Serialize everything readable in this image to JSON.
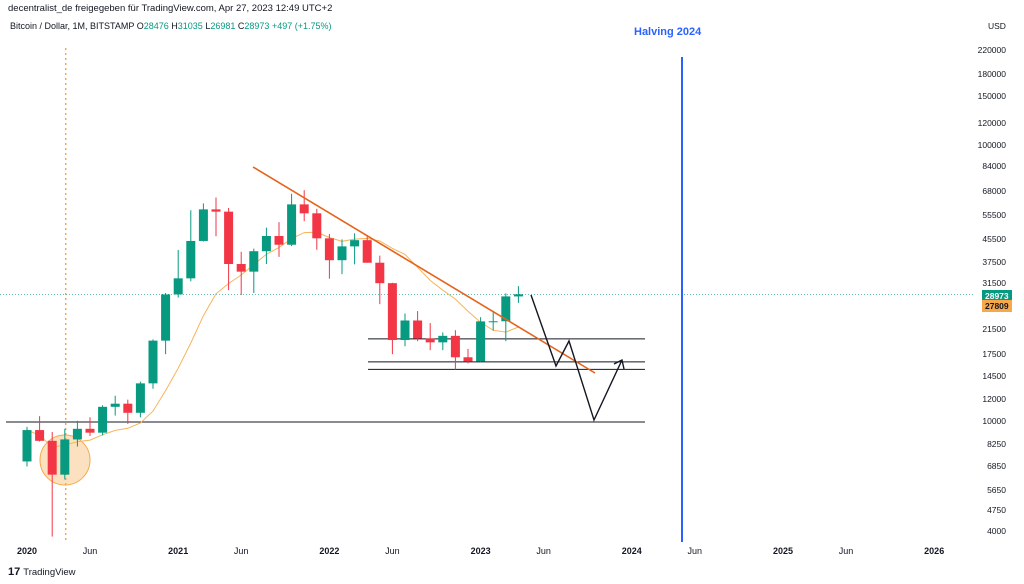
{
  "header": {
    "publish_line": "decentralist_de freigegeben für TradingView.com, Apr 27, 2023 12:49 UTC+2"
  },
  "legend": {
    "symbol": "Bitcoin / Dollar, 1M, BITSTAMP",
    "open_label": "O",
    "open": "28476",
    "high_label": "H",
    "high": "31035",
    "low_label": "L",
    "low": "26981",
    "close_label": "C",
    "close": "28973",
    "change": "+497 (+1.75%)"
  },
  "annotation": {
    "halving": "Halving 2024"
  },
  "price_axis": {
    "currency": "USD",
    "ticks": [
      "220000",
      "180000",
      "150000",
      "120000",
      "100000",
      "84000",
      "68000",
      "55500",
      "45500",
      "37500",
      "31500",
      "21500",
      "17500",
      "14500",
      "12000",
      "10000",
      "8250",
      "6850",
      "5650",
      "4750",
      "4000"
    ],
    "last_price_tag": "28973",
    "ma_tag": "27809"
  },
  "time_axis": {
    "labels": [
      {
        "text": "2020",
        "year": true
      },
      {
        "text": "Jun",
        "year": false
      },
      {
        "text": "2021",
        "year": true
      },
      {
        "text": "Jun",
        "year": false
      },
      {
        "text": "2022",
        "year": true
      },
      {
        "text": "Jun",
        "year": false
      },
      {
        "text": "2023",
        "year": true
      },
      {
        "text": "Jun",
        "year": false
      },
      {
        "text": "2024",
        "year": true
      },
      {
        "text": "Jun",
        "year": false
      },
      {
        "text": "2025",
        "year": true
      },
      {
        "text": "Jun",
        "year": false
      },
      {
        "text": "2026",
        "year": true
      }
    ]
  },
  "footer": {
    "brand": "TradingView"
  },
  "colors": {
    "up": "#089981",
    "down": "#f23645",
    "ma": "#f7b45a",
    "trendline": "#e5631c",
    "halving_line": "#2962ff",
    "highlight_circle": "#f7a84a"
  },
  "chart_data": {
    "type": "candlestick",
    "title": "Bitcoin / Dollar, 1M, BITSTAMP",
    "y_scale": "log",
    "ylim": [
      3800,
      240000
    ],
    "y_unit": "USD",
    "candles": [
      {
        "date": "2020-01",
        "o": 7200,
        "h": 9600,
        "l": 6900,
        "c": 9350
      },
      {
        "date": "2020-02",
        "o": 9350,
        "h": 10500,
        "l": 8500,
        "c": 8550
      },
      {
        "date": "2020-03",
        "o": 8550,
        "h": 9200,
        "l": 3850,
        "c": 6450
      },
      {
        "date": "2020-04",
        "o": 6450,
        "h": 9450,
        "l": 6200,
        "c": 8650
      },
      {
        "date": "2020-05",
        "o": 8650,
        "h": 10100,
        "l": 8150,
        "c": 9450
      },
      {
        "date": "2020-06",
        "o": 9450,
        "h": 10400,
        "l": 8900,
        "c": 9150
      },
      {
        "date": "2020-07",
        "o": 9150,
        "h": 11500,
        "l": 8950,
        "c": 11350
      },
      {
        "date": "2020-08",
        "o": 11350,
        "h": 12450,
        "l": 10550,
        "c": 11650
      },
      {
        "date": "2020-09",
        "o": 11650,
        "h": 12050,
        "l": 9850,
        "c": 10800
      },
      {
        "date": "2020-10",
        "o": 10800,
        "h": 14000,
        "l": 10400,
        "c": 13800
      },
      {
        "date": "2020-11",
        "o": 13800,
        "h": 19900,
        "l": 13200,
        "c": 19700
      },
      {
        "date": "2020-12",
        "o": 19700,
        "h": 29300,
        "l": 17600,
        "c": 28950
      },
      {
        "date": "2021-01",
        "o": 28950,
        "h": 41950,
        "l": 28200,
        "c": 33100
      },
      {
        "date": "2021-02",
        "o": 33100,
        "h": 58350,
        "l": 32300,
        "c": 45200
      },
      {
        "date": "2021-03",
        "o": 45200,
        "h": 61800,
        "l": 45000,
        "c": 58800
      },
      {
        "date": "2021-04",
        "o": 58800,
        "h": 64900,
        "l": 47000,
        "c": 57700
      },
      {
        "date": "2021-05",
        "o": 57700,
        "h": 59500,
        "l": 30000,
        "c": 37300
      },
      {
        "date": "2021-06",
        "o": 37300,
        "h": 41300,
        "l": 28800,
        "c": 35000
      },
      {
        "date": "2021-07",
        "o": 35000,
        "h": 42400,
        "l": 29300,
        "c": 41500
      },
      {
        "date": "2021-08",
        "o": 41500,
        "h": 50500,
        "l": 37300,
        "c": 47100
      },
      {
        "date": "2021-09",
        "o": 47100,
        "h": 52900,
        "l": 39600,
        "c": 43800
      },
      {
        "date": "2021-10",
        "o": 43800,
        "h": 67000,
        "l": 43300,
        "c": 61300
      },
      {
        "date": "2021-11",
        "o": 61300,
        "h": 69000,
        "l": 53300,
        "c": 56900
      },
      {
        "date": "2021-12",
        "o": 56900,
        "h": 59100,
        "l": 42000,
        "c": 46200
      },
      {
        "date": "2022-01",
        "o": 46200,
        "h": 47900,
        "l": 33000,
        "c": 38500
      },
      {
        "date": "2022-02",
        "o": 38500,
        "h": 45800,
        "l": 34300,
        "c": 43200
      },
      {
        "date": "2022-03",
        "o": 43200,
        "h": 48200,
        "l": 37200,
        "c": 45500
      },
      {
        "date": "2022-04",
        "o": 45500,
        "h": 47400,
        "l": 37700,
        "c": 37700
      },
      {
        "date": "2022-05",
        "o": 37700,
        "h": 40000,
        "l": 26700,
        "c": 31800
      },
      {
        "date": "2022-06",
        "o": 31800,
        "h": 31900,
        "l": 17600,
        "c": 19800
      },
      {
        "date": "2022-07",
        "o": 19800,
        "h": 24700,
        "l": 18800,
        "c": 23300
      },
      {
        "date": "2022-08",
        "o": 23300,
        "h": 25200,
        "l": 19600,
        "c": 20050
      },
      {
        "date": "2022-09",
        "o": 20050,
        "h": 22800,
        "l": 18200,
        "c": 19420
      },
      {
        "date": "2022-10",
        "o": 19420,
        "h": 21100,
        "l": 18200,
        "c": 20500
      },
      {
        "date": "2022-11",
        "o": 20500,
        "h": 21500,
        "l": 15500,
        "c": 17150
      },
      {
        "date": "2022-12",
        "o": 17150,
        "h": 18400,
        "l": 16300,
        "c": 16550
      },
      {
        "date": "2023-01",
        "o": 16550,
        "h": 23950,
        "l": 16500,
        "c": 23130
      },
      {
        "date": "2023-02",
        "o": 23130,
        "h": 25250,
        "l": 21400,
        "c": 23150
      },
      {
        "date": "2023-03",
        "o": 23150,
        "h": 29200,
        "l": 19600,
        "c": 28480
      },
      {
        "date": "2023-04",
        "o": 28476,
        "h": 31035,
        "l": 26981,
        "c": 28973
      }
    ],
    "levels": [
      10000,
      15500,
      16500,
      20000
    ],
    "halving_date": "2024-04",
    "time_ticks": [
      "2020",
      "Jun",
      "2021",
      "Jun",
      "2022",
      "Jun",
      "2023",
      "Jun",
      "2024",
      "Jun",
      "2025",
      "Jun",
      "2026"
    ],
    "price_ticks": [
      220000,
      180000,
      150000,
      120000,
      100000,
      84000,
      68000,
      55500,
      45500,
      37500,
      31500,
      21500,
      17500,
      14500,
      12000,
      10000,
      8250,
      6850,
      5650,
      4750,
      4000
    ],
    "last_price": 28973,
    "ma_value": 27809
  }
}
